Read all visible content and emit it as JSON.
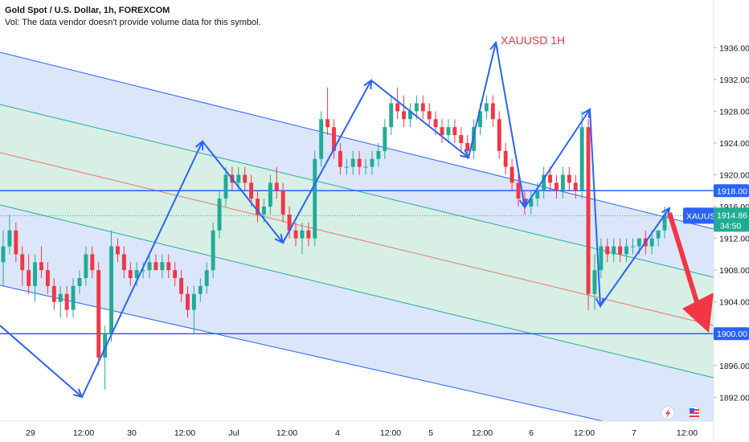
{
  "header": {
    "title": "Gold Spot / U.S. Dollar, 1h, FOREXCOM",
    "volume_note": "Vol: The data vendor doesn't provide volume data for this symbol."
  },
  "chart_data": {
    "type": "candlestick",
    "symbol": "XAUUSD",
    "annotation": "XAUUSD 1H",
    "ylim": [
      1889,
      1942
    ],
    "y_ticks": [
      "1936.00",
      "1932.00",
      "1928.00",
      "1924.00",
      "1920.00",
      "1916.00",
      "1912.00",
      "1908.00",
      "1904.00",
      "1900.00",
      "1896.00",
      "1892.00"
    ],
    "x_ticks": [
      "29",
      "12:00",
      "30",
      "12:00",
      "Jul",
      "12:00",
      "4",
      "12:00",
      "5",
      "12:00",
      "6",
      "12:00",
      "7",
      "12:00"
    ],
    "last_price": "1914.86",
    "countdown": "34:50",
    "horizontal_levels": [
      {
        "label": "1918.00",
        "value": 1918.0
      },
      {
        "label": "1900.00",
        "value": 1900.0
      }
    ],
    "candles": [
      {
        "o": 1909,
        "h": 1913,
        "l": 1906,
        "c": 1911
      },
      {
        "o": 1911,
        "h": 1915,
        "l": 1910,
        "c": 1913
      },
      {
        "o": 1913,
        "h": 1914,
        "l": 1909,
        "c": 1910
      },
      {
        "o": 1910,
        "h": 1911,
        "l": 1906,
        "c": 1908
      },
      {
        "o": 1908,
        "h": 1910,
        "l": 1905,
        "c": 1906
      },
      {
        "o": 1906,
        "h": 1910,
        "l": 1904,
        "c": 1909
      },
      {
        "o": 1909,
        "h": 1911,
        "l": 1907,
        "c": 1908
      },
      {
        "o": 1908,
        "h": 1909,
        "l": 1905,
        "c": 1906
      },
      {
        "o": 1906,
        "h": 1907,
        "l": 1903,
        "c": 1904
      },
      {
        "o": 1904,
        "h": 1906,
        "l": 1902,
        "c": 1905
      },
      {
        "o": 1905,
        "h": 1906,
        "l": 1902,
        "c": 1903
      },
      {
        "o": 1903,
        "h": 1907,
        "l": 1902,
        "c": 1906
      },
      {
        "o": 1906,
        "h": 1908,
        "l": 1905,
        "c": 1907
      },
      {
        "o": 1907,
        "h": 1911,
        "l": 1906,
        "c": 1910
      },
      {
        "o": 1910,
        "h": 1911,
        "l": 1907,
        "c": 1908
      },
      {
        "o": 1908,
        "h": 1909,
        "l": 1896,
        "c": 1897
      },
      {
        "o": 1897,
        "h": 1901,
        "l": 1893,
        "c": 1900
      },
      {
        "o": 1900,
        "h": 1913,
        "l": 1899,
        "c": 1911
      },
      {
        "o": 1911,
        "h": 1912,
        "l": 1909,
        "c": 1910
      },
      {
        "o": 1910,
        "h": 1911,
        "l": 1907,
        "c": 1908
      },
      {
        "o": 1908,
        "h": 1909,
        "l": 1906,
        "c": 1907
      },
      {
        "o": 1907,
        "h": 1909,
        "l": 1906,
        "c": 1908
      },
      {
        "o": 1908,
        "h": 1909,
        "l": 1907,
        "c": 1908
      },
      {
        "o": 1908,
        "h": 1910,
        "l": 1907,
        "c": 1909
      },
      {
        "o": 1909,
        "h": 1910,
        "l": 1908,
        "c": 1908
      },
      {
        "o": 1908,
        "h": 1910,
        "l": 1907,
        "c": 1909
      },
      {
        "o": 1909,
        "h": 1910,
        "l": 1907,
        "c": 1908
      },
      {
        "o": 1908,
        "h": 1909,
        "l": 1906,
        "c": 1907
      },
      {
        "o": 1907,
        "h": 1908,
        "l": 1904,
        "c": 1905
      },
      {
        "o": 1905,
        "h": 1906,
        "l": 1902,
        "c": 1903
      },
      {
        "o": 1903,
        "h": 1906,
        "l": 1900,
        "c": 1905
      },
      {
        "o": 1905,
        "h": 1907,
        "l": 1904,
        "c": 1906
      },
      {
        "o": 1906,
        "h": 1909,
        "l": 1905,
        "c": 1908
      },
      {
        "o": 1908,
        "h": 1914,
        "l": 1907,
        "c": 1913
      },
      {
        "o": 1913,
        "h": 1918,
        "l": 1912,
        "c": 1917
      },
      {
        "o": 1917,
        "h": 1921,
        "l": 1916,
        "c": 1920
      },
      {
        "o": 1920,
        "h": 1921,
        "l": 1918,
        "c": 1919
      },
      {
        "o": 1919,
        "h": 1921,
        "l": 1918,
        "c": 1920
      },
      {
        "o": 1920,
        "h": 1921,
        "l": 1918,
        "c": 1919
      },
      {
        "o": 1919,
        "h": 1920,
        "l": 1916,
        "c": 1917
      },
      {
        "o": 1917,
        "h": 1918,
        "l": 1914,
        "c": 1915
      },
      {
        "o": 1915,
        "h": 1917,
        "l": 1914,
        "c": 1916
      },
      {
        "o": 1916,
        "h": 1920,
        "l": 1915,
        "c": 1919
      },
      {
        "o": 1919,
        "h": 1921,
        "l": 1917,
        "c": 1918
      },
      {
        "o": 1918,
        "h": 1919,
        "l": 1914,
        "c": 1915
      },
      {
        "o": 1915,
        "h": 1916,
        "l": 1912,
        "c": 1913
      },
      {
        "o": 1913,
        "h": 1914,
        "l": 1911,
        "c": 1912
      },
      {
        "o": 1912,
        "h": 1914,
        "l": 1910,
        "c": 1913
      },
      {
        "o": 1913,
        "h": 1914,
        "l": 1911,
        "c": 1912
      },
      {
        "o": 1912,
        "h": 1923,
        "l": 1911,
        "c": 1922
      },
      {
        "o": 1922,
        "h": 1928,
        "l": 1921,
        "c": 1927
      },
      {
        "o": 1927,
        "h": 1931,
        "l": 1925,
        "c": 1926
      },
      {
        "o": 1926,
        "h": 1927,
        "l": 1922,
        "c": 1923
      },
      {
        "o": 1923,
        "h": 1924,
        "l": 1920,
        "c": 1921
      },
      {
        "o": 1921,
        "h": 1922,
        "l": 1920,
        "c": 1921
      },
      {
        "o": 1921,
        "h": 1923,
        "l": 1920,
        "c": 1922
      },
      {
        "o": 1922,
        "h": 1923,
        "l": 1920,
        "c": 1921
      },
      {
        "o": 1921,
        "h": 1922,
        "l": 1920,
        "c": 1921
      },
      {
        "o": 1921,
        "h": 1923,
        "l": 1920,
        "c": 1922
      },
      {
        "o": 1922,
        "h": 1924,
        "l": 1921,
        "c": 1923
      },
      {
        "o": 1923,
        "h": 1927,
        "l": 1922,
        "c": 1926
      },
      {
        "o": 1926,
        "h": 1930,
        "l": 1925,
        "c": 1929
      },
      {
        "o": 1929,
        "h": 1931,
        "l": 1927,
        "c": 1928
      },
      {
        "o": 1928,
        "h": 1930,
        "l": 1926,
        "c": 1927
      },
      {
        "o": 1927,
        "h": 1929,
        "l": 1926,
        "c": 1928
      },
      {
        "o": 1928,
        "h": 1930,
        "l": 1927,
        "c": 1929
      },
      {
        "o": 1929,
        "h": 1930,
        "l": 1927,
        "c": 1928
      },
      {
        "o": 1928,
        "h": 1929,
        "l": 1926,
        "c": 1927
      },
      {
        "o": 1927,
        "h": 1928,
        "l": 1925,
        "c": 1926
      },
      {
        "o": 1926,
        "h": 1927,
        "l": 1924,
        "c": 1925
      },
      {
        "o": 1925,
        "h": 1927,
        "l": 1924,
        "c": 1926
      },
      {
        "o": 1926,
        "h": 1927,
        "l": 1924,
        "c": 1925
      },
      {
        "o": 1925,
        "h": 1926,
        "l": 1923,
        "c": 1924
      },
      {
        "o": 1924,
        "h": 1925,
        "l": 1922,
        "c": 1923
      },
      {
        "o": 1923,
        "h": 1927,
        "l": 1922,
        "c": 1926
      },
      {
        "o": 1926,
        "h": 1929,
        "l": 1925,
        "c": 1928
      },
      {
        "o": 1928,
        "h": 1930,
        "l": 1927,
        "c": 1929
      },
      {
        "o": 1929,
        "h": 1930,
        "l": 1926,
        "c": 1927
      },
      {
        "o": 1927,
        "h": 1928,
        "l": 1922,
        "c": 1923
      },
      {
        "o": 1923,
        "h": 1924,
        "l": 1920,
        "c": 1921
      },
      {
        "o": 1921,
        "h": 1922,
        "l": 1918,
        "c": 1919
      },
      {
        "o": 1919,
        "h": 1920,
        "l": 1916,
        "c": 1917
      },
      {
        "o": 1917,
        "h": 1918,
        "l": 1915,
        "c": 1916
      },
      {
        "o": 1916,
        "h": 1918,
        "l": 1915,
        "c": 1917
      },
      {
        "o": 1917,
        "h": 1919,
        "l": 1916,
        "c": 1918
      },
      {
        "o": 1918,
        "h": 1921,
        "l": 1917,
        "c": 1920
      },
      {
        "o": 1920,
        "h": 1921,
        "l": 1918,
        "c": 1919
      },
      {
        "o": 1919,
        "h": 1920,
        "l": 1917,
        "c": 1918
      },
      {
        "o": 1918,
        "h": 1921,
        "l": 1917,
        "c": 1920
      },
      {
        "o": 1920,
        "h": 1921,
        "l": 1918,
        "c": 1919
      },
      {
        "o": 1919,
        "h": 1920,
        "l": 1917,
        "c": 1918
      },
      {
        "o": 1918,
        "h": 1928,
        "l": 1917,
        "c": 1926
      },
      {
        "o": 1926,
        "h": 1927,
        "l": 1903,
        "c": 1905
      },
      {
        "o": 1905,
        "h": 1910,
        "l": 1903,
        "c": 1908
      },
      {
        "o": 1908,
        "h": 1912,
        "l": 1907,
        "c": 1911
      },
      {
        "o": 1911,
        "h": 1912,
        "l": 1909,
        "c": 1910
      },
      {
        "o": 1910,
        "h": 1912,
        "l": 1909,
        "c": 1911
      },
      {
        "o": 1911,
        "h": 1912,
        "l": 1909,
        "c": 1910
      },
      {
        "o": 1910,
        "h": 1912,
        "l": 1909,
        "c": 1911
      },
      {
        "o": 1911,
        "h": 1912,
        "l": 1910,
        "c": 1911
      },
      {
        "o": 1911,
        "h": 1912,
        "l": 1910,
        "c": 1912
      },
      {
        "o": 1912,
        "h": 1913,
        "l": 1910,
        "c": 1911
      },
      {
        "o": 1911,
        "h": 1913,
        "l": 1910,
        "c": 1912
      },
      {
        "o": 1912,
        "h": 1913,
        "l": 1911,
        "c": 1913
      },
      {
        "o": 1913,
        "h": 1916,
        "l": 1912,
        "c": 1915
      }
    ]
  },
  "colors": {
    "up": "#22ab94",
    "down": "#f23645",
    "channel_line": "#2962ff",
    "band_outer": "#dbe6fb",
    "band_inner": "#d7efe5",
    "mid_line": "#e57373",
    "inner_line": "#22ab94",
    "drawing": "#2962ff",
    "forecast_arrow": "#f23645",
    "axis_text": "#131722",
    "tag_blue": "#2962ff",
    "tag_price": "#22ab94"
  },
  "icons": {
    "flash": "lightning-icon",
    "flag": "us-flag-icon"
  }
}
